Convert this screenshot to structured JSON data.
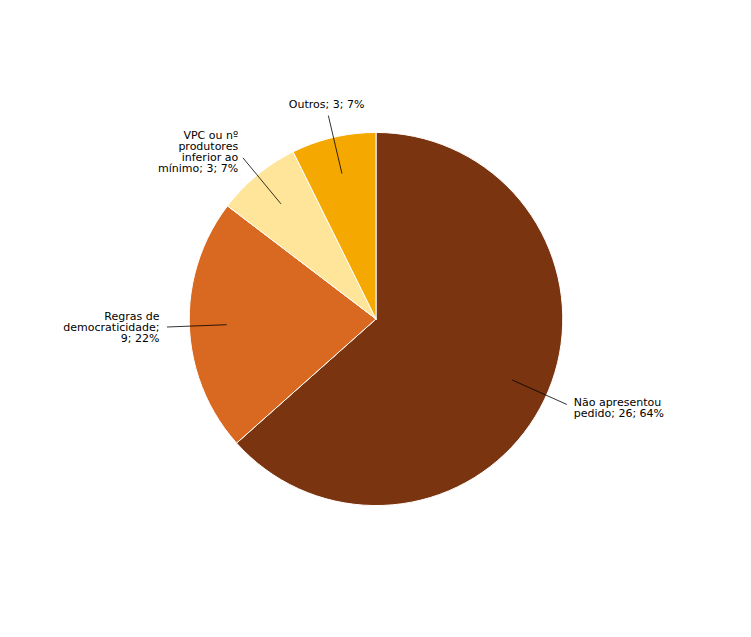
{
  "chart_data": {
    "type": "pie",
    "categories": [
      "Não apresentou\npedido; 26; 64%",
      "Regras de\ndemocraticidade;\n9; 22%",
      "VPC ou nº\nprodutores\ninferior ao\nmínimo; 3; 7%",
      "Outros; 3; 7%"
    ],
    "values": [
      26,
      9,
      3,
      3
    ],
    "colors": [
      "#7B3410",
      "#D96820",
      "#FFE599",
      "#F5A800"
    ]
  }
}
